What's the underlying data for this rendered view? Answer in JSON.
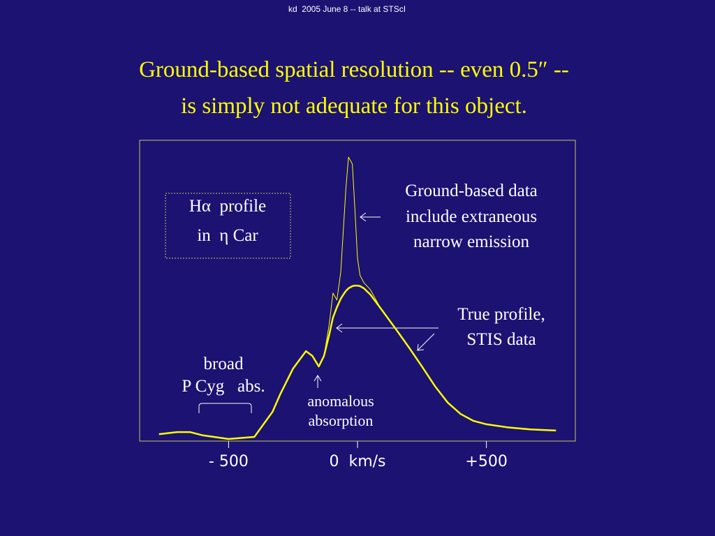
{
  "header": "kd  2005 June 8 -- talk at STScI",
  "chart_data": {
    "type": "line",
    "title": [
      "Ground-based spatial resolution -- even 0.5″ --",
      "is simply not adequate for this object."
    ],
    "x": [
      -770,
      -700,
      -650,
      -600,
      -500,
      -400,
      -330,
      -300,
      -250,
      -200,
      -175,
      -150,
      -130,
      -110,
      -95,
      -80,
      -65,
      -55,
      -45,
      -35,
      -20,
      -10,
      0,
      10,
      25,
      50,
      90,
      150,
      200,
      250,
      300,
      350,
      400,
      450,
      500,
      580,
      670,
      770
    ],
    "series": [
      {
        "name": "True profile, STIS data",
        "color": "#ffff00",
        "width": 2.5,
        "values": [
          0.023,
          0.03,
          0.03,
          0.019,
          0.007,
          0.014,
          0.097,
          0.155,
          0.241,
          0.299,
          0.283,
          0.248,
          0.283,
          0.353,
          0.411,
          0.445,
          0.473,
          0.487,
          0.499,
          0.508,
          0.515,
          0.517,
          0.517,
          0.515,
          0.508,
          0.487,
          0.441,
          0.371,
          0.311,
          0.248,
          0.183,
          0.128,
          0.09,
          0.067,
          0.056,
          0.046,
          0.039,
          0.035
        ]
      },
      {
        "name": "Ground-based data",
        "color": "#ffff00",
        "width": 1,
        "values": [
          null,
          null,
          null,
          null,
          null,
          null,
          null,
          null,
          null,
          null,
          null,
          0.248,
          0.283,
          0.387,
          0.492,
          0.469,
          0.561,
          0.701,
          0.84,
          0.944,
          0.921,
          0.77,
          0.608,
          0.55,
          0.527,
          0.503,
          0.441,
          null,
          null,
          null,
          null,
          null,
          null,
          null,
          null,
          null,
          null,
          null
        ]
      }
    ],
    "xlim": [
      -845,
      845
    ],
    "ylim": [
      0,
      1
    ],
    "xticks": [
      {
        "value": -500,
        "label": "- 500"
      },
      {
        "value": 0,
        "label": "0  km/s"
      },
      {
        "value": 500,
        "label": "+500"
      }
    ],
    "annotations": [
      [
        "Hα  profile",
        "in  η Car"
      ],
      [
        "Ground-based data",
        "include extraneous",
        "narrow emission"
      ],
      [
        "True profile,",
        "STIS data"
      ],
      [
        "broad",
        "P Cyg   abs."
      ],
      [
        "anomalous",
        "absorption"
      ]
    ]
  }
}
